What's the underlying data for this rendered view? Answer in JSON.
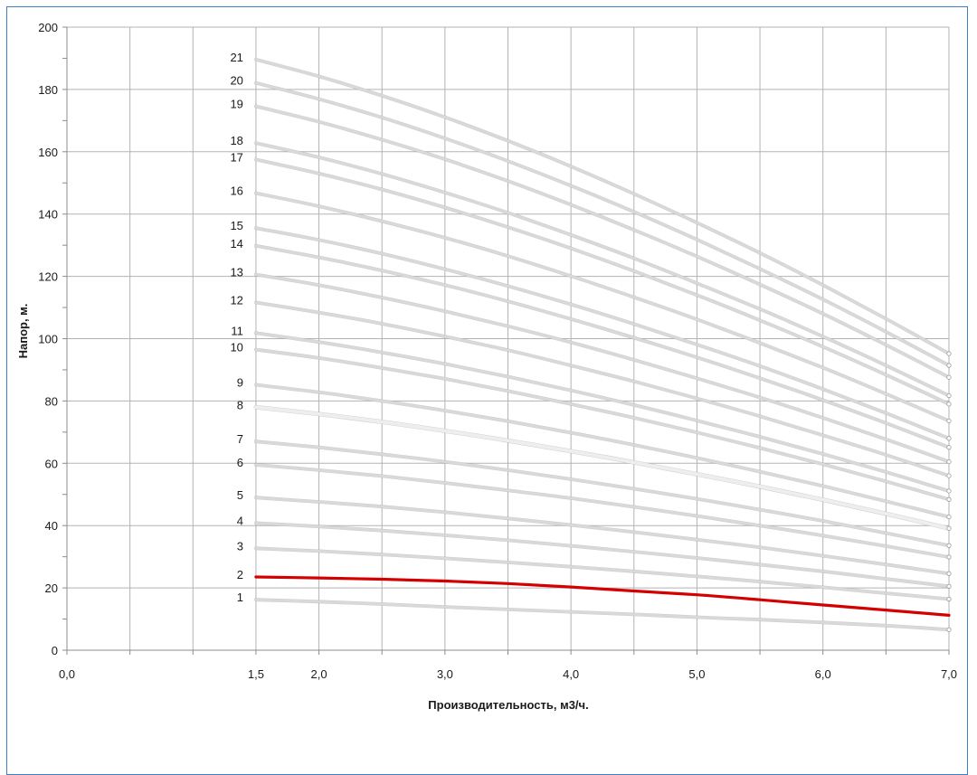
{
  "chart_data": {
    "type": "line",
    "title": "",
    "xlabel": "Производительность, м3/ч.",
    "ylabel": "Напор, м.",
    "xlim": [
      0,
      7
    ],
    "ylim": [
      0,
      200
    ],
    "x_ticks": [
      {
        "value": 0,
        "label": "0,0"
      },
      {
        "value": 1.5,
        "label": "1,5"
      },
      {
        "value": 2,
        "label": "2,0"
      },
      {
        "value": 3,
        "label": "3,0"
      },
      {
        "value": 4,
        "label": "4,0"
      },
      {
        "value": 5,
        "label": "5,0"
      },
      {
        "value": 6,
        "label": "6,0"
      },
      {
        "value": 7,
        "label": "7,0"
      }
    ],
    "y_ticks": [
      {
        "value": 0,
        "label": "0"
      },
      {
        "value": 20,
        "label": "20"
      },
      {
        "value": 40,
        "label": "40"
      },
      {
        "value": 60,
        "label": "60"
      },
      {
        "value": 80,
        "label": "80"
      },
      {
        "value": 100,
        "label": "100"
      },
      {
        "value": 120,
        "label": "120"
      },
      {
        "value": 140,
        "label": "140"
      },
      {
        "value": 160,
        "label": "160"
      },
      {
        "value": 180,
        "label": "180"
      },
      {
        "value": 200,
        "label": "200"
      }
    ],
    "grid": true,
    "legend": "none",
    "highlight_color": "#d40000",
    "curve_color": "#d9d9d9",
    "x": [
      1.5,
      2,
      2.5,
      3,
      3.5,
      4,
      4.5,
      5,
      5.5,
      6,
      6.5,
      7
    ],
    "series": [
      {
        "name": "1",
        "values": [
          16.2,
          15.6,
          14.8,
          13.9,
          13.1,
          12.3,
          11.5,
          10.6,
          9.8,
          8.9,
          7.9,
          6.6
        ]
      },
      {
        "name": "2",
        "values": [
          23.5,
          23.2,
          22.8,
          22.2,
          21.4,
          20.3,
          19.0,
          17.8,
          16.2,
          14.5,
          12.9,
          11.2
        ]
      },
      {
        "name": "3",
        "values": [
          32.7,
          31.8,
          30.7,
          29.5,
          28.2,
          26.8,
          25.3,
          23.7,
          22.0,
          20.2,
          18.3,
          16.4
        ]
      },
      {
        "name": "4",
        "values": [
          40.8,
          39.7,
          38.4,
          36.9,
          35.3,
          33.5,
          31.6,
          29.6,
          27.5,
          25.3,
          22.9,
          20.5
        ]
      },
      {
        "name": "5",
        "values": [
          49.0,
          47.6,
          46.1,
          44.3,
          42.3,
          40.2,
          37.9,
          35.5,
          33.0,
          30.3,
          27.5,
          24.6
        ]
      },
      {
        "name": "6",
        "values": [
          59.5,
          57.8,
          55.9,
          53.7,
          51.3,
          48.8,
          46.0,
          43.1,
          40.0,
          36.8,
          33.4,
          29.9
        ]
      },
      {
        "name": "7",
        "values": [
          67.0,
          65.1,
          62.9,
          60.5,
          57.8,
          54.9,
          51.8,
          48.6,
          45.1,
          41.5,
          37.6,
          33.6
        ]
      },
      {
        "name": "8",
        "values": [
          78.0,
          75.8,
          73.3,
          70.4,
          67.3,
          63.9,
          60.3,
          56.5,
          52.5,
          48.3,
          43.8,
          39.1
        ]
      },
      {
        "name": "9",
        "values": [
          85.2,
          82.8,
          80.0,
          76.9,
          73.5,
          69.8,
          65.9,
          61.7,
          57.3,
          52.7,
          47.8,
          42.8
        ]
      },
      {
        "name": "10",
        "values": [
          96.5,
          93.8,
          90.6,
          87.1,
          83.2,
          79.0,
          74.6,
          69.9,
          64.9,
          59.7,
          54.2,
          48.4
        ]
      },
      {
        "name": "11",
        "values": [
          101.8,
          98.9,
          95.6,
          91.9,
          87.8,
          83.4,
          78.7,
          73.7,
          68.5,
          63.0,
          57.2,
          51.1
        ]
      },
      {
        "name": "12",
        "values": [
          111.6,
          108.4,
          104.8,
          100.7,
          96.3,
          91.4,
          86.3,
          80.8,
          75.1,
          69.0,
          62.7,
          56.0
        ]
      },
      {
        "name": "13",
        "values": [
          120.6,
          117.2,
          113.2,
          108.8,
          104.0,
          98.8,
          93.2,
          87.3,
          81.1,
          74.6,
          67.7,
          60.5
        ]
      },
      {
        "name": "14",
        "values": [
          129.8,
          126.1,
          121.9,
          117.2,
          112.0,
          106.3,
          100.3,
          94.0,
          87.3,
          80.3,
          72.9,
          65.1
        ]
      },
      {
        "name": "15",
        "values": [
          135.5,
          131.7,
          127.3,
          122.3,
          116.9,
          111.0,
          104.7,
          98.1,
          91.2,
          83.8,
          76.1,
          68.0
        ]
      },
      {
        "name": "16",
        "values": [
          146.7,
          142.5,
          137.7,
          132.4,
          126.5,
          120.1,
          113.3,
          106.2,
          98.6,
          90.7,
          82.3,
          73.6
        ]
      },
      {
        "name": "17",
        "values": [
          157.5,
          153.0,
          147.9,
          142.1,
          135.8,
          129.0,
          121.7,
          114.0,
          105.9,
          97.4,
          88.4,
          79.0
        ]
      },
      {
        "name": "18",
        "values": [
          162.8,
          158.2,
          152.9,
          146.9,
          140.4,
          133.3,
          125.8,
          117.8,
          109.5,
          100.7,
          91.4,
          81.7
        ]
      },
      {
        "name": "19",
        "values": [
          174.6,
          169.6,
          163.9,
          157.6,
          150.6,
          143.0,
          134.9,
          126.4,
          117.4,
          108.0,
          98.0,
          87.6
        ]
      },
      {
        "name": "20",
        "values": [
          182.1,
          176.9,
          171.0,
          164.3,
          157.0,
          149.1,
          140.7,
          131.8,
          122.4,
          112.6,
          102.2,
          91.4
        ]
      },
      {
        "name": "21",
        "values": [
          189.6,
          184.2,
          178.0,
          171.1,
          163.5,
          155.3,
          146.5,
          137.2,
          127.5,
          117.2,
          106.4,
          95.2
        ]
      }
    ],
    "highlighted_series": "2"
  }
}
